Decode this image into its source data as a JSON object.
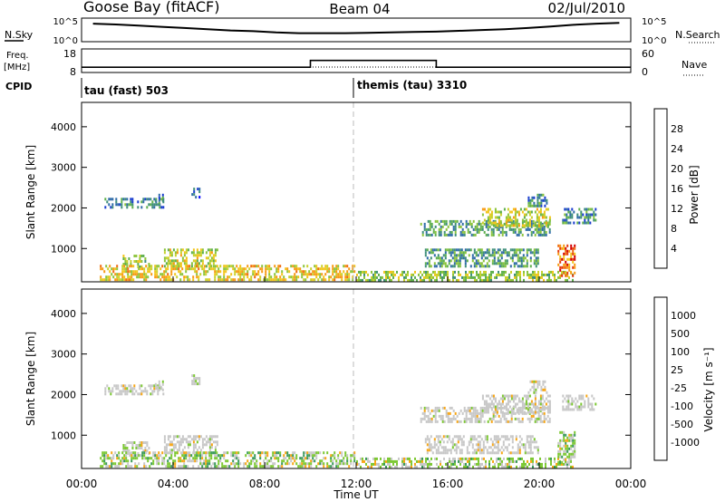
{
  "header": {
    "station": "Goose Bay (fitACF)",
    "beam": "Beam 04",
    "date": "02/Jul/2010"
  },
  "noise_panel": {
    "left_label": "N.Sky",
    "right_label": "N.Search",
    "ticks_left": [
      "10^5",
      "10^0"
    ],
    "ticks_right": [
      "10^5",
      "10^0"
    ]
  },
  "freq_panel": {
    "left_label_1": "Freq.",
    "left_label_2": "[MHz]",
    "right_label": "Nave",
    "ticks_left": [
      "18",
      "8"
    ],
    "ticks_right": [
      "60",
      "0"
    ]
  },
  "cpid_panel": {
    "label": "CPID",
    "mode_1": "tau (fast) 503",
    "mode_2": "themis (tau) 3310"
  },
  "power_panel": {
    "ylabel": "Slant Range [km]",
    "yticks": [
      "4000",
      "3000",
      "2000",
      "1000"
    ],
    "colorbar_label": "Power [dB]",
    "colorbar_ticks": [
      "28",
      "24",
      "20",
      "16",
      "12",
      "8",
      "4"
    ],
    "colors": [
      "#0000ff",
      "#1a3ecf",
      "#2f6ba8",
      "#3f8f7a",
      "#5fb04e",
      "#8cc43c",
      "#c9d12c",
      "#f2c51b",
      "#f79a14",
      "#ef6a10",
      "#e43a0c",
      "#d40000"
    ]
  },
  "velocity_panel": {
    "ylabel": "Slant Range [km]",
    "yticks": [
      "4000",
      "3000",
      "2000",
      "1000"
    ],
    "colorbar_label": "Velocity [m s⁻¹]",
    "colorbar_ticks": [
      "1000",
      "500",
      "100",
      "25",
      "-25",
      "-100",
      "-500",
      "-1000"
    ],
    "colors": [
      "#2233cc",
      "#2f6ba8",
      "#3a9a5a",
      "#7cc832",
      "#c8c8c8",
      "#f7a614",
      "#ef6a10",
      "#e61e0c"
    ]
  },
  "xaxis": {
    "label": "Time UT",
    "ticks": [
      "00:00",
      "04:00",
      "08:00",
      "12:00",
      "16:00",
      "20:00",
      "00:00"
    ]
  },
  "chart_data": {
    "type": "heatmap",
    "title": "Goose Bay (fitACF)  Beam 04  02/Jul/2010",
    "xlabel": "Time UT",
    "ylabel": "Slant Range [km]",
    "xlim": [
      0,
      24
    ],
    "ylim": [
      180,
      4600
    ],
    "x_ticks": [
      "00:00",
      "04:00",
      "08:00",
      "12:00",
      "16:00",
      "20:00",
      "00:00"
    ],
    "y_ticks": [
      1000,
      2000,
      3000,
      4000
    ],
    "power_db_range": [
      0,
      30
    ],
    "velocity_range": [
      -1000,
      1000
    ],
    "noise_sky_log10": [
      4.3,
      4.1,
      3.8,
      3.5,
      3.2,
      2.9,
      2.6,
      2.4,
      2.1,
      1.9,
      1.9,
      1.9,
      2.0,
      2.1,
      2.2,
      2.3,
      2.5,
      2.7,
      2.9,
      3.2,
      3.6,
      4.0,
      4.3,
      4.5
    ],
    "frequency_mhz": [
      {
        "start": 0,
        "end": 10.0,
        "value": 10.2
      },
      {
        "start": 10.0,
        "end": 15.5,
        "value": 13.6
      },
      {
        "start": 15.5,
        "end": 24,
        "value": 10.2
      }
    ],
    "cpid_segments": [
      {
        "start": 0,
        "end": 12.0,
        "name": "tau (fast) 503"
      },
      {
        "start": 12.0,
        "end": 24,
        "name": "themis (tau) 3310"
      }
    ],
    "echo_regions": [
      {
        "t": [
          1.0,
          3.6
        ],
        "r": [
          1950,
          2250
        ],
        "power": 8,
        "velocity": 25
      },
      {
        "t": [
          3.2,
          3.6
        ],
        "r": [
          2100,
          2350
        ],
        "power": 8,
        "velocity": 25
      },
      {
        "t": [
          4.8,
          5.2
        ],
        "r": [
          2200,
          2500
        ],
        "power": 6,
        "velocity": 25
      },
      {
        "t": [
          1.8,
          3.0
        ],
        "r": [
          500,
          850
        ],
        "power": 14,
        "velocity": 25
      },
      {
        "t": [
          3.6,
          6.0
        ],
        "r": [
          550,
          1000
        ],
        "power": 16,
        "velocity": 25
      },
      {
        "t": [
          0.8,
          12.0
        ],
        "r": [
          200,
          600
        ],
        "power": 18,
        "velocity": 100
      },
      {
        "t": [
          12.0,
          21.5
        ],
        "r": [
          200,
          450
        ],
        "power": 14,
        "velocity": 100
      },
      {
        "t": [
          15.0,
          20.0
        ],
        "r": [
          550,
          1000
        ],
        "power": 10,
        "velocity": 25
      },
      {
        "t": [
          14.8,
          20.5
        ],
        "r": [
          1300,
          1700
        ],
        "power": 10,
        "velocity": 25
      },
      {
        "t": [
          17.5,
          20.5
        ],
        "r": [
          1500,
          2000
        ],
        "power": 16,
        "velocity": 25
      },
      {
        "t": [
          19.5,
          20.4
        ],
        "r": [
          2000,
          2350
        ],
        "power": 8,
        "velocity": 25
      },
      {
        "t": [
          20.8,
          21.6
        ],
        "r": [
          300,
          1100
        ],
        "power": 24,
        "velocity": 100
      },
      {
        "t": [
          21.0,
          22.5
        ],
        "r": [
          1600,
          2000
        ],
        "power": 8,
        "velocity": 25
      }
    ]
  }
}
